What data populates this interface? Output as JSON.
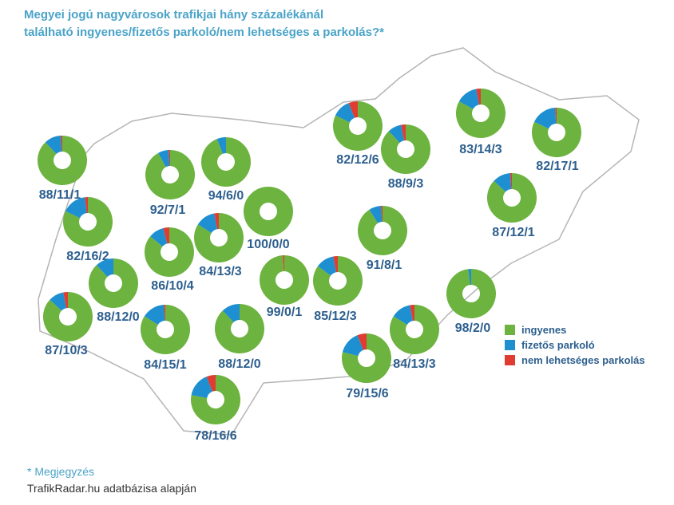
{
  "title": {
    "line1": "Megyei jogú nagyvárosok trafikjai hány százalékánál",
    "line2": "található ingyenes/fizetős parkoló/nem lehetséges a parkolás?*"
  },
  "colors": {
    "ingyenes": "#6cb33f",
    "fizetos": "#1e8fd0",
    "nem": "#e03c31",
    "label": "#2d5f8e",
    "border": "#b5b5b5"
  },
  "legend": [
    {
      "label": "ingyenes",
      "color": "#6cb33f"
    },
    {
      "label": "fizetős parkoló",
      "color": "#1e8fd0"
    },
    {
      "label": "nem lehetséges parkolás",
      "color": "#e03c31"
    }
  ],
  "footer": {
    "note": "* Megjegyzés",
    "source": "TrafikRadar.hu adatbázisa alapján"
  },
  "chart_data": {
    "type": "pie",
    "series_names": [
      "ingyenes",
      "fizetős parkoló",
      "nem lehetséges parkolás"
    ],
    "pies": [
      {
        "label": "88/11/1",
        "values": [
          88,
          11,
          1
        ]
      },
      {
        "label": "82/16/2",
        "values": [
          82,
          16,
          2
        ]
      },
      {
        "label": "87/10/3",
        "values": [
          87,
          10,
          3
        ]
      },
      {
        "label": "88/12/0",
        "values": [
          88,
          12,
          0
        ]
      },
      {
        "label": "86/10/4",
        "values": [
          86,
          10,
          4
        ]
      },
      {
        "label": "92/7/1",
        "values": [
          92,
          7,
          1
        ]
      },
      {
        "label": "94/6/0",
        "values": [
          94,
          6,
          0
        ]
      },
      {
        "label": "84/13/3",
        "values": [
          84,
          13,
          3
        ]
      },
      {
        "label": "100/0/0",
        "values": [
          100,
          0,
          0
        ]
      },
      {
        "label": "84/15/1",
        "values": [
          84,
          15,
          1
        ]
      },
      {
        "label": "88/12/0",
        "values": [
          88,
          12,
          0
        ]
      },
      {
        "label": "78/16/6",
        "values": [
          78,
          16,
          6
        ]
      },
      {
        "label": "99/0/1",
        "values": [
          99,
          0,
          1
        ]
      },
      {
        "label": "85/12/3",
        "values": [
          85,
          12,
          3
        ]
      },
      {
        "label": "79/15/6",
        "values": [
          79,
          15,
          6
        ]
      },
      {
        "label": "84/13/3",
        "values": [
          84,
          13,
          3
        ]
      },
      {
        "label": "91/8/1",
        "values": [
          91,
          8,
          1
        ]
      },
      {
        "label": "82/12/6",
        "values": [
          82,
          12,
          6
        ]
      },
      {
        "label": "88/9/3",
        "values": [
          88,
          9,
          3
        ]
      },
      {
        "label": "83/14/3",
        "values": [
          83,
          14,
          3
        ]
      },
      {
        "label": "82/17/1",
        "values": [
          82,
          17,
          1
        ]
      },
      {
        "label": "87/12/1",
        "values": [
          87,
          12,
          1
        ]
      },
      {
        "label": "98/2/0",
        "values": [
          98,
          2,
          0
        ]
      }
    ]
  }
}
